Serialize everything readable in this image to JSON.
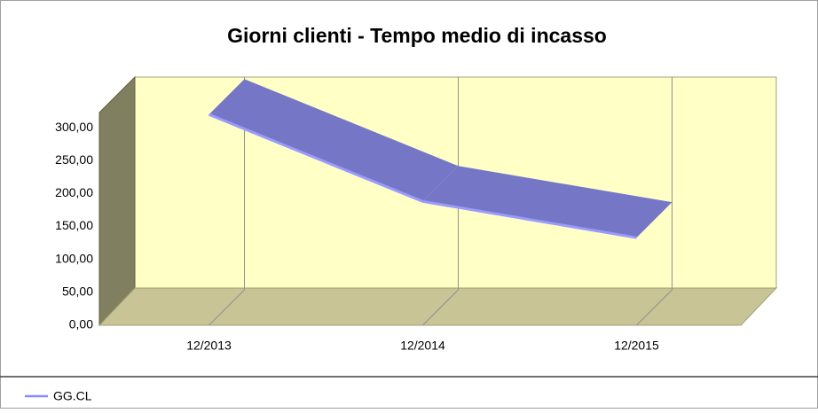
{
  "chart_data": {
    "type": "line3d",
    "title": "Giorni clienti - Tempo medio di incasso",
    "categories": [
      "12/2013",
      "12/2014",
      "12/2015"
    ],
    "series": [
      {
        "name": "GG.CL",
        "color": "#7676c6",
        "values": [
          320,
          188,
          133
        ]
      }
    ],
    "ylim": [
      0,
      323
    ],
    "yticks": [
      {
        "value": 0,
        "label": "0,00"
      },
      {
        "value": 50,
        "label": "50,00"
      },
      {
        "value": 100,
        "label": "100,00"
      },
      {
        "value": 150,
        "label": "150,00"
      },
      {
        "value": 200,
        "label": "200,00"
      },
      {
        "value": 250,
        "label": "250,00"
      },
      {
        "value": 300,
        "label": "300,00"
      }
    ],
    "legend": "bottom-left",
    "grid": false
  }
}
